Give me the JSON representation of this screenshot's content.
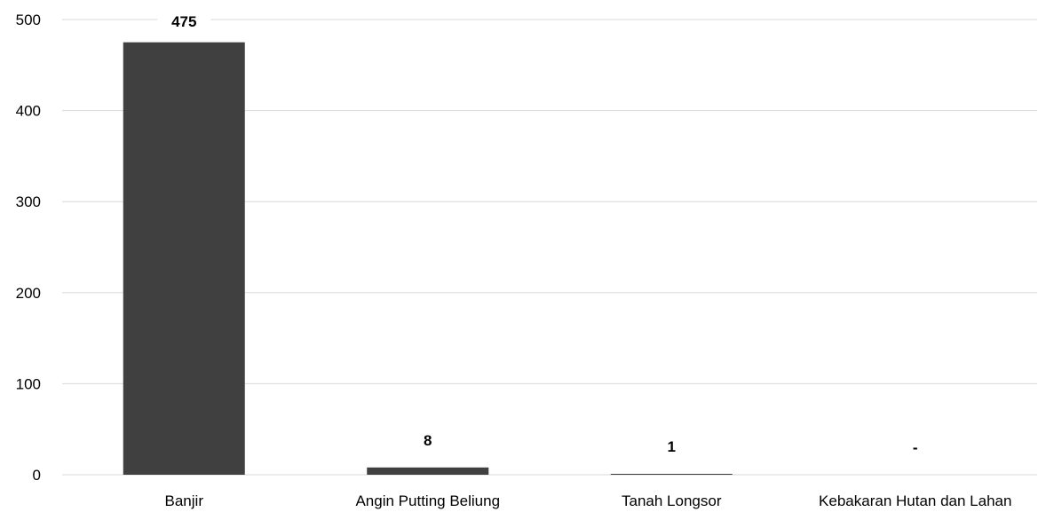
{
  "chart_data": {
    "type": "bar",
    "title": "",
    "xlabel": "",
    "ylabel": "",
    "categories": [
      "Banjir",
      "Angin Putting Beliung",
      "Tanah Longsor",
      "Kebakaran Hutan dan Lahan"
    ],
    "values": [
      475,
      8,
      1,
      0
    ],
    "data_labels": [
      "475",
      "8",
      "1",
      "-"
    ],
    "ylim": [
      0,
      500
    ],
    "yticks": [
      0,
      100,
      200,
      300,
      400,
      500
    ],
    "ytick_labels": [
      "0",
      "100",
      "200",
      "300",
      "400",
      "500"
    ],
    "grid": true,
    "legend": "none",
    "colors": {
      "bar": "#404040",
      "grid": "#d9d9d9",
      "text": "#000000"
    }
  }
}
